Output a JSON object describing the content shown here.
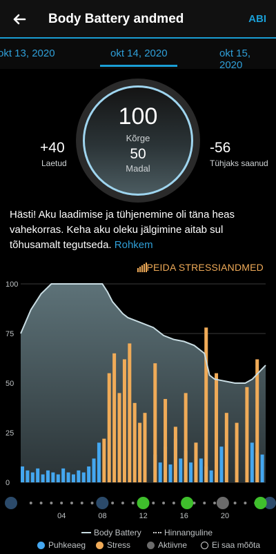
{
  "header": {
    "title": "Body Battery andmed",
    "help_label": "ABI"
  },
  "dates": {
    "previous": "okt 13, 2020",
    "current": "okt 14, 2020",
    "next": "okt 15, 2020"
  },
  "summary": {
    "high_value": "100",
    "high_label": "Kõrge",
    "low_value": "50",
    "low_label": "Madal",
    "charged_value": "+40",
    "charged_label": "Laetud",
    "drained_value": "-56",
    "drained_label": "Tühjaks saanud"
  },
  "description": {
    "text": "Hästi! Aku laadimise ja tühjenemine oli täna heas vahekorras. Keha aku oleku jälgimine aitab sul tõhusamalt tegutseda.",
    "more_link": "Rohkem"
  },
  "stress_toggle": {
    "label": "PEIDA STRESSIANDMED",
    "icon": "stress-bars-icon"
  },
  "chart_data": {
    "type": "area",
    "y_ticks": [
      "100",
      "75",
      "50",
      "25",
      "0"
    ],
    "ylim": [
      0,
      100
    ],
    "x_ticks": [
      "04",
      "08",
      "12",
      "16",
      "20"
    ],
    "xlim_hours": [
      0,
      24
    ],
    "body_battery": {
      "x": [
        0,
        1,
        2,
        3,
        4,
        5,
        6,
        7,
        8,
        8.5,
        9,
        10,
        10.5,
        11,
        12,
        13,
        14,
        15,
        16,
        17,
        18,
        18.5,
        19,
        20,
        21,
        22,
        22.7,
        24
      ],
      "y": [
        75,
        87,
        95,
        100,
        100,
        100,
        100,
        100,
        100,
        96,
        91,
        85,
        83,
        82,
        80,
        78,
        74,
        72,
        71,
        69,
        65,
        54,
        52,
        51,
        50,
        50,
        52,
        59
      ]
    },
    "rest_stress": {
      "x": [
        0,
        0.5,
        1,
        1.5,
        2,
        2.5,
        3,
        3.5,
        4,
        4.5,
        5,
        5.5,
        6,
        6.5,
        7,
        7.5,
        8,
        8.5,
        9,
        9.5,
        10,
        10.5,
        11,
        11.5,
        12,
        12.5,
        13,
        13.5,
        14,
        14.5,
        15,
        15.5,
        16,
        16.5,
        17,
        17.5,
        18,
        18.5,
        19,
        19.5,
        20,
        20.5,
        21,
        21.5,
        22,
        22.5,
        23,
        23.5
      ],
      "y": [
        8,
        6,
        5,
        7,
        4,
        6,
        5,
        4,
        7,
        5,
        4,
        6,
        5,
        8,
        12,
        20,
        0,
        0,
        0,
        0,
        0,
        0,
        0,
        0,
        0,
        0,
        14,
        10,
        18,
        9,
        22,
        12,
        16,
        10,
        20,
        12,
        8,
        6,
        5,
        18,
        0,
        0,
        0,
        0,
        0,
        20,
        15,
        14
      ]
    },
    "high_stress": {
      "x": [
        8,
        8.5,
        9,
        9.5,
        10,
        10.5,
        11,
        11.5,
        12,
        12.5,
        13,
        13.5,
        14,
        14.5,
        15,
        15.5,
        16,
        16.5,
        17,
        17.5,
        18,
        18.5,
        19,
        19.5,
        20,
        20.5,
        21,
        21.5,
        22,
        22.5,
        23,
        23.5
      ],
      "y": [
        22,
        55,
        65,
        45,
        62,
        70,
        40,
        30,
        35,
        0,
        60,
        0,
        42,
        0,
        28,
        0,
        45,
        0,
        20,
        0,
        78,
        0,
        55,
        0,
        35,
        0,
        30,
        0,
        48,
        0,
        62,
        0
      ]
    },
    "activity_markers_hours": [
      8,
      12,
      16.3,
      19.8,
      23.5
    ],
    "legend": [
      {
        "label": "Body Battery",
        "color": "#c9dde3"
      },
      {
        "label": "Hinnanguline",
        "color": "#cfcfcf"
      },
      {
        "label": "Puhkeaeg",
        "color": "#44a7f0"
      },
      {
        "label": "Stress",
        "color": "#f0ab58"
      },
      {
        "label": "Aktiivne",
        "color": "#6b6b6b"
      },
      {
        "label": "Ei saa mõõta",
        "color": "#cfcfcf"
      }
    ]
  },
  "colors": {
    "accent": "#1a9fd6",
    "stress": "#f0ab58",
    "rest": "#44a7f0",
    "active": "#6b6b6b",
    "activity_green": "#3fbf2c"
  }
}
